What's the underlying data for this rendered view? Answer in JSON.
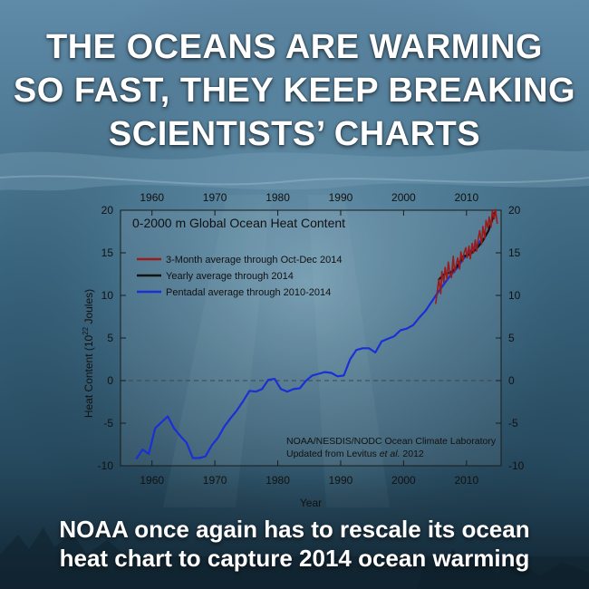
{
  "headline": {
    "lines": [
      "THE OCEANS ARE WARMING",
      "SO FAST, THEY KEEP BREAKING",
      "SCIENTISTS’ CHARTS"
    ]
  },
  "caption": {
    "lines": [
      "NOAA once again has to rescale its ocean",
      "heat chart to capture 2014 ocean warming"
    ]
  },
  "colors": {
    "three_month": "#9b1b1b",
    "yearly": "#111111",
    "pentadal": "#1a2fd6",
    "zero_line": "#444444"
  },
  "chart_data": {
    "type": "line",
    "title": "0-2000 m Global Ocean Heat Content",
    "xlabel": "Year",
    "ylabel_prefix": "Heat Content (10",
    "ylabel_exp": "22",
    "ylabel_suffix": " Joules)",
    "xlim": [
      1955,
      2015.5
    ],
    "ylim": [
      -10,
      20
    ],
    "xticks": [
      1960,
      1970,
      1980,
      1990,
      2000,
      2010
    ],
    "yticks": [
      -10,
      -5,
      0,
      5,
      10,
      15,
      20
    ],
    "credit_line1": "NOAA/NESDIS/NODC Ocean Climate Laboratory",
    "credit_line2_prefix": "Updated from Levitus ",
    "credit_line2_italic": "et al.",
    "credit_line2_suffix": " 2012",
    "legend": [
      "3-Month average through Oct-Dec 2014",
      "Yearly average through 2014",
      "Pentadal average through 2010-2014"
    ],
    "series": [
      {
        "name": "Pentadal average through 2010-2014",
        "key": "pentadal",
        "x": [
          1957.5,
          1958.5,
          1959.5,
          1960.5,
          1961.5,
          1962.5,
          1963.5,
          1964.5,
          1965.5,
          1966.5,
          1967.5,
          1968.5,
          1969.5,
          1970.5,
          1971.5,
          1972.5,
          1973.5,
          1974.5,
          1975.5,
          1976.5,
          1977.5,
          1978.5,
          1979.5,
          1980.5,
          1981.5,
          1982.5,
          1983.5,
          1984.5,
          1985.5,
          1986.5,
          1987.5,
          1988.5,
          1989.5,
          1990.5,
          1991.5,
          1992.5,
          1993.5,
          1994.5,
          1995.5,
          1996.5,
          1997.5,
          1998.5,
          1999.5,
          2000.5,
          2001.5,
          2002.5,
          2003.5,
          2004.5,
          2005.5,
          2006.5,
          2007.5,
          2008.5,
          2009.5,
          2010.5,
          2011.5,
          2012.5
        ],
        "y": [
          -9.2,
          -8.1,
          -8.6,
          -5.6,
          -4.9,
          -4.2,
          -5.6,
          -6.5,
          -7.3,
          -9.1,
          -9.1,
          -8.9,
          -7.6,
          -6.7,
          -5.4,
          -4.4,
          -3.5,
          -2.4,
          -1.2,
          -1.3,
          -1.0,
          0.1,
          0.2,
          -1.0,
          -1.3,
          -1.0,
          -0.9,
          0.0,
          0.6,
          0.8,
          1.0,
          0.9,
          0.5,
          0.6,
          2.5,
          3.6,
          3.8,
          3.8,
          3.3,
          4.6,
          4.9,
          5.2,
          5.9,
          6.1,
          6.5,
          7.4,
          8.2,
          9.3,
          10.4,
          11.4,
          12.4,
          13.2,
          14.3,
          15.1,
          15.8,
          16.6
        ]
      },
      {
        "name": "Yearly average through 2014",
        "key": "yearly",
        "x": [
          2005.5,
          2006.5,
          2007.5,
          2008.5,
          2009.5,
          2010.5,
          2011.5,
          2012.5,
          2013.5,
          2014.5
        ],
        "y": [
          11.8,
          12.5,
          12.7,
          13.4,
          14.6,
          14.8,
          15.4,
          16.3,
          17.6,
          19.8
        ]
      },
      {
        "name": "3-Month average through Oct-Dec 2014",
        "key": "three_month",
        "x": [
          2005.1,
          2005.4,
          2005.6,
          2005.9,
          2006.1,
          2006.4,
          2006.6,
          2006.9,
          2007.1,
          2007.4,
          2007.6,
          2007.9,
          2008.1,
          2008.4,
          2008.6,
          2008.9,
          2009.1,
          2009.4,
          2009.6,
          2009.9,
          2010.1,
          2010.4,
          2010.6,
          2010.9,
          2011.1,
          2011.4,
          2011.6,
          2011.9,
          2012.1,
          2012.4,
          2012.6,
          2012.9,
          2013.1,
          2013.4,
          2013.6,
          2013.9,
          2014.1,
          2014.4,
          2014.6,
          2014.9
        ],
        "y": [
          9.0,
          10.8,
          11.9,
          10.2,
          12.8,
          11.5,
          13.3,
          11.9,
          13.9,
          12.4,
          12.1,
          14.6,
          12.7,
          13.7,
          14.4,
          13.1,
          15.1,
          14.0,
          14.9,
          15.6,
          14.4,
          15.8,
          14.3,
          16.1,
          15.0,
          16.5,
          15.2,
          16.8,
          17.6,
          16.0,
          18.1,
          16.7,
          18.8,
          17.9,
          19.2,
          18.0,
          19.9,
          19.0,
          20.1,
          18.4
        ]
      }
    ]
  }
}
